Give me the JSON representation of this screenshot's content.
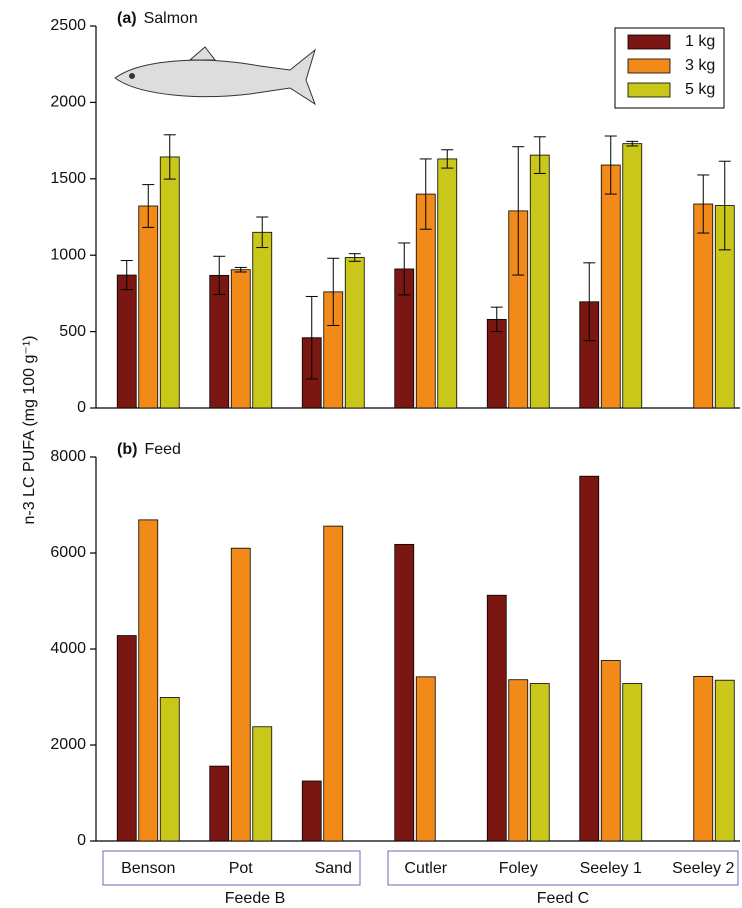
{
  "chart_data": [
    {
      "type": "bar",
      "panel_label": "(a)",
      "title": "Salmon",
      "categories": [
        "Benson",
        "Pot",
        "Sand",
        "Cutler",
        "Foley",
        "Seeley 1",
        "Seeley 2"
      ],
      "series": [
        {
          "name": "1 kg",
          "color": "#7b1712",
          "values": [
            870,
            868,
            460,
            910,
            580,
            695,
            null
          ],
          "errors": [
            95,
            125,
            270,
            170,
            80,
            255,
            null
          ]
        },
        {
          "name": "3 kg",
          "color": "#f28a1a",
          "values": [
            1322,
            905,
            760,
            1400,
            1290,
            1590,
            1335
          ],
          "errors": [
            140,
            15,
            220,
            230,
            420,
            190,
            190
          ]
        },
        {
          "name": "5 kg",
          "color": "#c9c81a",
          "values": [
            1643,
            1150,
            985,
            1630,
            1655,
            1730,
            1325
          ],
          "errors": [
            145,
            100,
            25,
            60,
            120,
            15,
            290
          ]
        }
      ],
      "ylim": [
        0,
        2500
      ],
      "yticks": [
        0,
        500,
        1000,
        1500,
        2000,
        2500
      ],
      "legend": "top-right"
    },
    {
      "type": "bar",
      "panel_label": "(b)",
      "title": "Feed",
      "y_label": "n-3 LC PUFA (mg 100 g⁻¹)",
      "categories": [
        "Benson",
        "Pot",
        "Sand",
        "Cutler",
        "Foley",
        "Seeley 1",
        "Seeley 2"
      ],
      "groups": [
        "Feede B",
        "Feed C"
      ],
      "series": [
        {
          "color": "#7b1712",
          "values": [
            4280,
            1560,
            1250,
            6180,
            5120,
            7600,
            null
          ]
        },
        {
          "color": "#f28a1a",
          "values": [
            6690,
            6100,
            6560,
            3420,
            3360,
            3760,
            3430
          ]
        },
        {
          "color": "#c9c81a",
          "values": [
            2990,
            2380,
            null,
            null,
            3280,
            3280,
            3350
          ]
        }
      ],
      "ylim": [
        0,
        8000
      ],
      "yticks": [
        0,
        2000,
        4000,
        6000,
        8000
      ]
    }
  ]
}
